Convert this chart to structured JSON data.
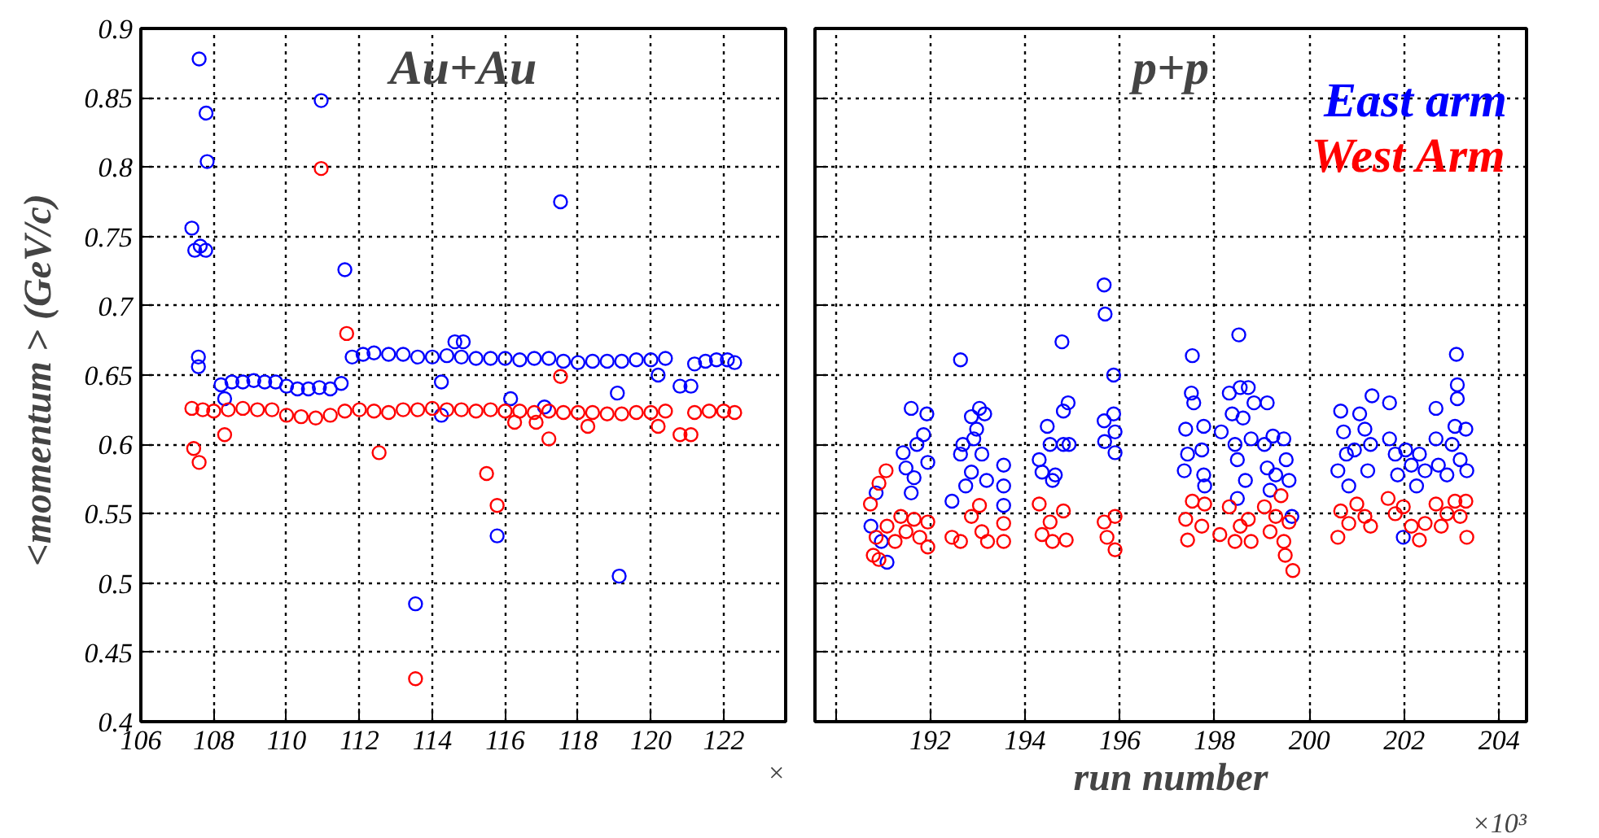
{
  "chart_data": [
    {
      "type": "scatter",
      "title": "Au+Au",
      "ylabel": "<momentum >  (GeV/c)",
      "xlim": [
        106,
        123.7
      ],
      "ylim": [
        0.4,
        0.9
      ],
      "xticks": [
        106,
        108,
        110,
        112,
        114,
        116,
        118,
        120,
        122
      ],
      "yticks": [
        0.4,
        0.45,
        0.5,
        0.55,
        0.6,
        0.65,
        0.7,
        0.75,
        0.8,
        0.85,
        0.9
      ],
      "grid": true,
      "marker": "circle",
      "annotations": [
        "×"
      ],
      "series": [
        {
          "color": "#0000ff",
          "x": [
            107.6,
            107.79,
            107.82,
            107.4,
            107.63,
            107.48,
            107.78,
            107.58,
            107.58,
            110.95,
            111.6,
            117.52,
            113.54,
            119.13,
            115.78,
            114.25,
            114.25,
            116.15,
            117.08,
            119.08,
            120.2,
            120.8,
            121.1,
            108.3,
            114.62,
            114.85,
            108.2,
            108.5,
            108.8,
            109.1,
            109.4,
            109.7,
            110.0,
            110.3,
            110.6,
            110.9,
            111.2,
            111.5,
            111.8,
            112.1,
            112.4,
            112.8,
            113.2,
            113.6,
            114.0,
            114.4,
            114.8,
            115.2,
            115.6,
            116.0,
            116.4,
            116.8,
            117.2,
            117.6,
            118.0,
            118.4,
            118.8,
            119.2,
            119.6,
            120.0,
            120.4,
            121.2,
            121.5,
            121.8,
            122.1,
            122.3
          ],
          "values": [
            0.878,
            0.839,
            0.804,
            0.756,
            0.743,
            0.74,
            0.74,
            0.663,
            0.656,
            0.848,
            0.726,
            0.775,
            0.485,
            0.505,
            0.534,
            0.645,
            0.621,
            0.633,
            0.627,
            0.637,
            0.65,
            0.642,
            0.642,
            0.633,
            0.674,
            0.674,
            0.643,
            0.645,
            0.645,
            0.646,
            0.645,
            0.645,
            0.642,
            0.64,
            0.64,
            0.641,
            0.64,
            0.644,
            0.663,
            0.665,
            0.666,
            0.665,
            0.665,
            0.663,
            0.663,
            0.664,
            0.663,
            0.662,
            0.662,
            0.662,
            0.661,
            0.662,
            0.662,
            0.66,
            0.659,
            0.66,
            0.66,
            0.66,
            0.661,
            0.661,
            0.662,
            0.658,
            0.66,
            0.661,
            0.661,
            0.659
          ]
        },
        {
          "color": "#ff0000",
          "x": [
            107.45,
            107.6,
            108.3,
            112.54,
            115.49,
            115.78,
            113.54,
            117.2,
            120.8,
            121.1,
            118.27,
            120.2,
            116.26,
            116.85,
            110.95,
            111.65,
            117.52,
            107.4,
            107.7,
            108.0,
            108.4,
            108.8,
            109.2,
            109.6,
            110.0,
            110.4,
            110.8,
            111.2,
            111.6,
            112.0,
            112.4,
            112.8,
            113.2,
            113.6,
            114.0,
            114.4,
            114.8,
            115.2,
            115.6,
            116.0,
            116.4,
            116.8,
            117.2,
            117.6,
            118.0,
            118.4,
            118.8,
            119.2,
            119.6,
            120.0,
            120.4,
            121.2,
            121.6,
            122.0,
            122.3
          ],
          "values": [
            0.597,
            0.587,
            0.607,
            0.594,
            0.579,
            0.556,
            0.431,
            0.604,
            0.607,
            0.607,
            0.613,
            0.613,
            0.616,
            0.616,
            0.799,
            0.68,
            0.649,
            0.626,
            0.625,
            0.624,
            0.625,
            0.626,
            0.625,
            0.625,
            0.621,
            0.62,
            0.619,
            0.621,
            0.624,
            0.625,
            0.624,
            0.623,
            0.625,
            0.625,
            0.626,
            0.625,
            0.625,
            0.624,
            0.625,
            0.624,
            0.624,
            0.623,
            0.624,
            0.623,
            0.623,
            0.623,
            0.622,
            0.622,
            0.623,
            0.623,
            0.624,
            0.623,
            0.624,
            0.624,
            0.623
          ]
        }
      ]
    },
    {
      "type": "scatter",
      "title": "p+p",
      "xlabel": "run number",
      "xlim": [
        189.57,
        204.58
      ],
      "ylim": [
        0.4,
        0.9
      ],
      "xticks": [
        {
          "value": 190,
          "label": null
        },
        192,
        194,
        196,
        198,
        200,
        202,
        204
      ],
      "yticks": [
        0.4,
        0.45,
        0.5,
        0.55,
        0.6,
        0.65,
        0.7,
        0.75,
        0.8,
        0.85,
        0.9
      ],
      "tick_labels": "x",
      "grid": true,
      "marker": "circle",
      "legend": "top right",
      "annotations": [
        "×10³"
      ],
      "series": [
        {
          "name": "East arm",
          "color": "#0000ff",
          "x": [
            190.75,
            190.86,
            191.09,
            190.97,
            191.43,
            191.49,
            191.6,
            191.66,
            191.72,
            191.6,
            191.86,
            191.93,
            191.95,
            192.46,
            192.64,
            192.64,
            192.69,
            192.75,
            192.87,
            192.92,
            192.98,
            193.04,
            193.09,
            193.15,
            193.19,
            192.87,
            193.55,
            193.55,
            193.55,
            194.3,
            194.36,
            194.47,
            194.53,
            194.58,
            194.64,
            194.78,
            194.81,
            194.91,
            194.81,
            194.93,
            195.67,
            195.69,
            195.87,
            195.67,
            195.68,
            195.87,
            195.9,
            195.9,
            197.36,
            197.39,
            197.43,
            197.53,
            197.51,
            197.56,
            197.73,
            197.77,
            197.79,
            197.77,
            198.14,
            198.31,
            198.51,
            198.37,
            198.43,
            198.48,
            198.54,
            198.6,
            198.65,
            198.71,
            198.77,
            198.83,
            198.48,
            199.11,
            199.05,
            199.11,
            199.17,
            199.23,
            199.29,
            199.46,
            199.51,
            199.57,
            199.63,
            200.6,
            200.66,
            200.72,
            200.78,
            200.83,
            200.95,
            201.06,
            201.17,
            201.23,
            201.32,
            201.29,
            201.69,
            201.69,
            201.81,
            201.86,
            201.98,
            202.03,
            202.15,
            202.26,
            202.32,
            202.44,
            202.67,
            202.67,
            202.72,
            202.9,
            203.01,
            203.1,
            203.12,
            203.12,
            203.07,
            203.18,
            203.3,
            203.32
          ],
          "values": [
            0.541,
            0.565,
            0.515,
            0.53,
            0.594,
            0.583,
            0.626,
            0.576,
            0.6,
            0.565,
            0.607,
            0.622,
            0.587,
            0.559,
            0.661,
            0.593,
            0.6,
            0.57,
            0.62,
            0.604,
            0.611,
            0.626,
            0.593,
            0.622,
            0.574,
            0.58,
            0.585,
            0.57,
            0.556,
            0.589,
            0.58,
            0.613,
            0.6,
            0.574,
            0.578,
            0.674,
            0.624,
            0.63,
            0.6,
            0.6,
            0.715,
            0.694,
            0.65,
            0.617,
            0.602,
            0.622,
            0.609,
            0.594,
            0.581,
            0.611,
            0.593,
            0.664,
            0.637,
            0.63,
            0.596,
            0.578,
            0.57,
            0.613,
            0.609,
            0.637,
            0.679,
            0.622,
            0.6,
            0.589,
            0.641,
            0.619,
            0.574,
            0.641,
            0.604,
            0.63,
            0.561,
            0.63,
            0.6,
            0.583,
            0.567,
            0.606,
            0.578,
            0.604,
            0.589,
            0.574,
            0.548,
            0.581,
            0.624,
            0.609,
            0.593,
            0.57,
            0.596,
            0.622,
            0.611,
            0.581,
            0.635,
            0.6,
            0.63,
            0.604,
            0.593,
            0.578,
            0.533,
            0.596,
            0.585,
            0.57,
            0.593,
            0.581,
            0.626,
            0.604,
            0.585,
            0.578,
            0.6,
            0.665,
            0.643,
            0.633,
            0.613,
            0.589,
            0.611,
            0.581
          ]
        },
        {
          "name": "West Arm",
          "color": "#ff0000",
          "x": [
            190.74,
            190.92,
            191.07,
            190.8,
            190.92,
            190.86,
            191.09,
            191.26,
            191.38,
            191.49,
            191.66,
            191.78,
            191.95,
            191.95,
            192.46,
            192.64,
            192.87,
            193.04,
            193.09,
            193.21,
            193.55,
            193.55,
            194.3,
            194.36,
            194.53,
            194.58,
            194.81,
            194.87,
            195.67,
            195.73,
            195.9,
            195.9,
            197.39,
            197.43,
            197.53,
            197.73,
            197.79,
            198.11,
            198.31,
            198.43,
            198.54,
            198.71,
            198.77,
            199.05,
            199.17,
            199.29,
            199.4,
            199.46,
            199.49,
            199.65,
            199.57,
            200.6,
            200.66,
            200.83,
            201.0,
            201.17,
            201.29,
            201.66,
            201.81,
            201.98,
            202.15,
            202.32,
            202.44,
            202.67,
            202.78,
            202.9,
            203.07,
            203.18,
            203.32,
            203.3
          ],
          "values": [
            0.557,
            0.572,
            0.581,
            0.52,
            0.517,
            0.533,
            0.541,
            0.53,
            0.548,
            0.537,
            0.546,
            0.533,
            0.544,
            0.526,
            0.533,
            0.53,
            0.548,
            0.556,
            0.537,
            0.53,
            0.543,
            0.53,
            0.557,
            0.535,
            0.544,
            0.53,
            0.552,
            0.531,
            0.544,
            0.533,
            0.548,
            0.524,
            0.546,
            0.531,
            0.559,
            0.541,
            0.557,
            0.535,
            0.555,
            0.53,
            0.541,
            0.546,
            0.53,
            0.555,
            0.537,
            0.548,
            0.563,
            0.53,
            0.52,
            0.509,
            0.544,
            0.533,
            0.552,
            0.543,
            0.557,
            0.548,
            0.541,
            0.561,
            0.55,
            0.555,
            0.541,
            0.531,
            0.543,
            0.557,
            0.541,
            0.55,
            0.559,
            0.548,
            0.533,
            0.559
          ]
        }
      ]
    }
  ]
}
